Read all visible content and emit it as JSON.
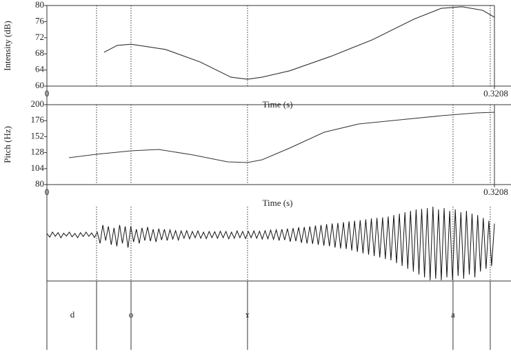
{
  "chart_data": [
    {
      "type": "line",
      "ylabel": "Intensity (dB)",
      "xlabel": "Time (s)",
      "color": "#333333",
      "xlim": [
        0,
        0.3208
      ],
      "xticks": [
        0,
        0.3208
      ],
      "ylim": [
        60,
        80
      ],
      "yticks": [
        60,
        64,
        68,
        72,
        76,
        80
      ],
      "x": [
        0.041,
        0.0504,
        0.0603,
        0.085,
        0.1097,
        0.132,
        0.1438,
        0.1542,
        0.174,
        0.2037,
        0.2333,
        0.263,
        0.2827,
        0.2976,
        0.3124,
        0.3208
      ],
      "values": [
        68.4,
        70.1,
        70.4,
        69.1,
        66.0,
        62.2,
        61.7,
        62.2,
        63.8,
        67.4,
        71.5,
        76.6,
        79.3,
        79.7,
        78.8,
        77.1
      ]
    },
    {
      "type": "line",
      "ylabel": "Pitch (Hz)",
      "xlabel": "Time (s)",
      "color": "#333333",
      "xlim": [
        0,
        0.3208
      ],
      "xticks": [
        0,
        0.3208
      ],
      "ylim": [
        80,
        200
      ],
      "yticks": [
        80,
        104,
        128,
        152,
        176,
        200
      ],
      "x": [
        0.0158,
        0.0356,
        0.0603,
        0.0801,
        0.1048,
        0.1295,
        0.1438,
        0.1542,
        0.174,
        0.1987,
        0.2234,
        0.2531,
        0.2827,
        0.3075,
        0.3208
      ],
      "values": [
        120.3,
        125.5,
        130.7,
        132.8,
        124.5,
        114.1,
        113.1,
        117.2,
        134.8,
        158.6,
        171,
        177.2,
        183.4,
        187.6,
        188.6
      ]
    },
    {
      "type": "waveform",
      "color": "#111111",
      "xlim": [
        0,
        0.3208
      ],
      "ylim": [
        -1.63,
        1
      ],
      "values": [
        0.05,
        -0.08,
        0.1,
        -0.05,
        0.08,
        -0.1,
        0.06,
        -0.04,
        0.1,
        -0.07,
        0.05,
        -0.1,
        0.08,
        -0.06,
        0.1,
        -0.05,
        0.07,
        -0.09,
        0.1,
        -0.3,
        0.35,
        -0.2,
        0.3,
        -0.35,
        0.25,
        -0.4,
        0.35,
        -0.3,
        0.3,
        -0.45,
        0.3,
        -0.25,
        0.2,
        -0.3,
        0.25,
        -0.2,
        0.28,
        -0.22,
        0.2,
        -0.25,
        0.22,
        -0.18,
        0.2,
        -0.2,
        0.18,
        -0.15,
        0.15,
        -0.18,
        0.14,
        -0.12,
        0.15,
        -0.14,
        0.12,
        -0.1,
        0.14,
        -0.12,
        0.1,
        -0.13,
        0.12,
        -0.1,
        0.11,
        -0.12,
        0.13,
        -0.1,
        0.12,
        -0.14,
        0.1,
        -0.12,
        0.14,
        -0.1,
        0.12,
        -0.13,
        0.12,
        -0.1,
        0.14,
        -0.12,
        0.13,
        -0.15,
        0.15,
        -0.14,
        0.17,
        -0.16,
        0.18,
        -0.2,
        0.2,
        -0.18,
        0.22,
        -0.24,
        0.24,
        -0.22,
        0.27,
        -0.28,
        0.28,
        -0.3,
        0.3,
        -0.32,
        0.33,
        -0.35,
        0.35,
        -0.38,
        0.38,
        -0.4,
        0.4,
        -0.45,
        0.42,
        -0.48,
        0.45,
        -0.5,
        0.48,
        -0.55,
        0.5,
        -0.6,
        0.52,
        -0.65,
        0.55,
        -0.7,
        0.58,
        -0.75,
        0.6,
        -0.8,
        0.62,
        -0.85,
        0.65,
        -0.9,
        0.7,
        -1.0,
        0.75,
        -1.1,
        0.8,
        -1.2,
        0.85,
        -1.3,
        0.9,
        -1.4,
        0.92,
        -1.5,
        0.95,
        -1.6,
        1.0,
        -1.55,
        0.9,
        -1.6,
        0.95,
        -1.5,
        0.85,
        -1.6,
        0.9,
        -1.45,
        0.8,
        -1.55,
        0.85,
        -1.4,
        0.75,
        -1.5,
        0.7,
        -1.3,
        0.6,
        -1.2,
        0.5,
        -1.1,
        0.4
      ]
    },
    {
      "type": "textgrid",
      "xlim": [
        0,
        0.3208
      ],
      "boundaries": [
        0.0356,
        0.0603,
        0.1438,
        0.2911,
        0.3178
      ],
      "points": [
        {
          "time": 0.0183,
          "label": "d"
        },
        {
          "time": 0.0603,
          "label": "o"
        },
        {
          "time": 0.1438,
          "label": "ɤ"
        },
        {
          "time": 0.2911,
          "label": "a"
        }
      ]
    }
  ]
}
